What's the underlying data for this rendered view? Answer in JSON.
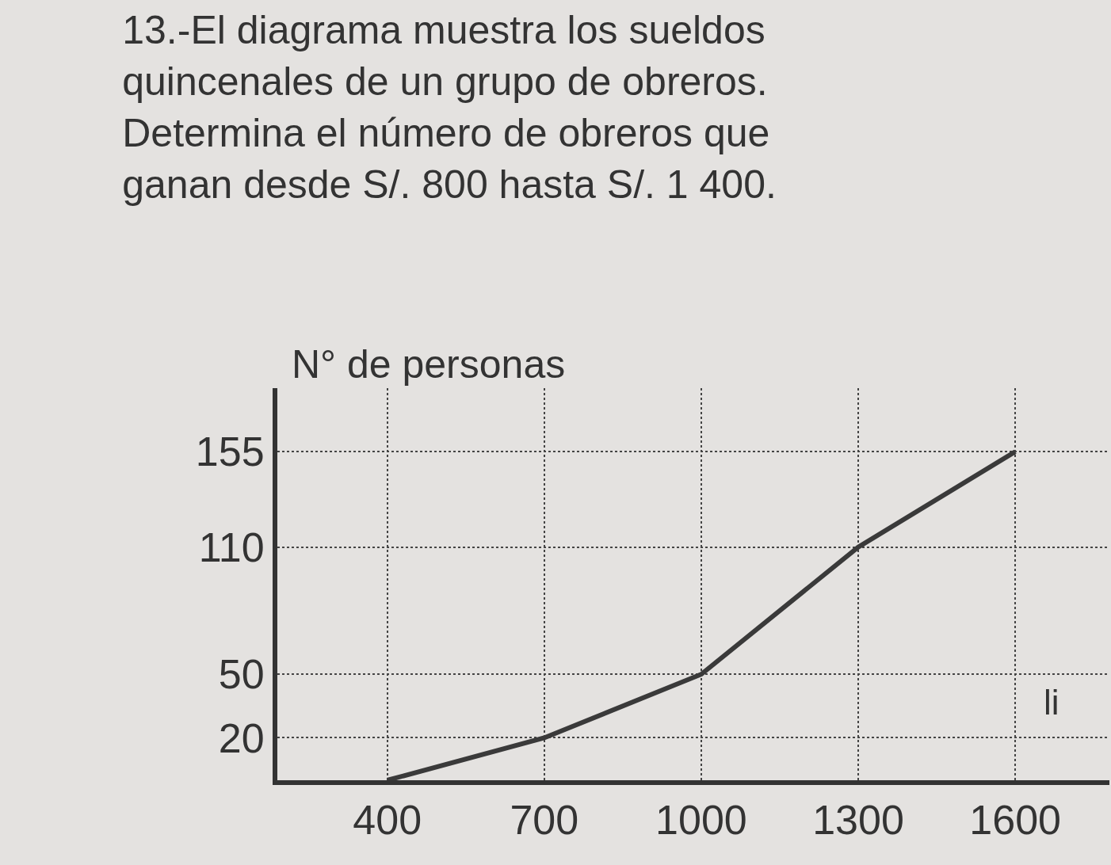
{
  "chart_data": {
    "type": "line",
    "title": "13.-El diagrama muestra los sueldos quincenales de un grupo de obreros. Determina el número de obreros que ganan desde S/. 800 hasta S/. 1 400.",
    "ylabel": "N° de personas",
    "xlabel": "li",
    "x": [
      400,
      700,
      1000,
      1300,
      1600
    ],
    "series": [
      {
        "color": "#3a3a3a",
        "values": [
          0,
          20,
          50,
          110,
          155
        ]
      }
    ],
    "xlim": [
      190,
      1780
    ],
    "xticks": [
      400,
      700,
      1000,
      1300,
      1600
    ],
    "ylim": [
      0,
      185
    ],
    "yticks": [
      20,
      50,
      110,
      155
    ],
    "grid": true,
    "marker": "none",
    "line_style": "solid"
  }
}
